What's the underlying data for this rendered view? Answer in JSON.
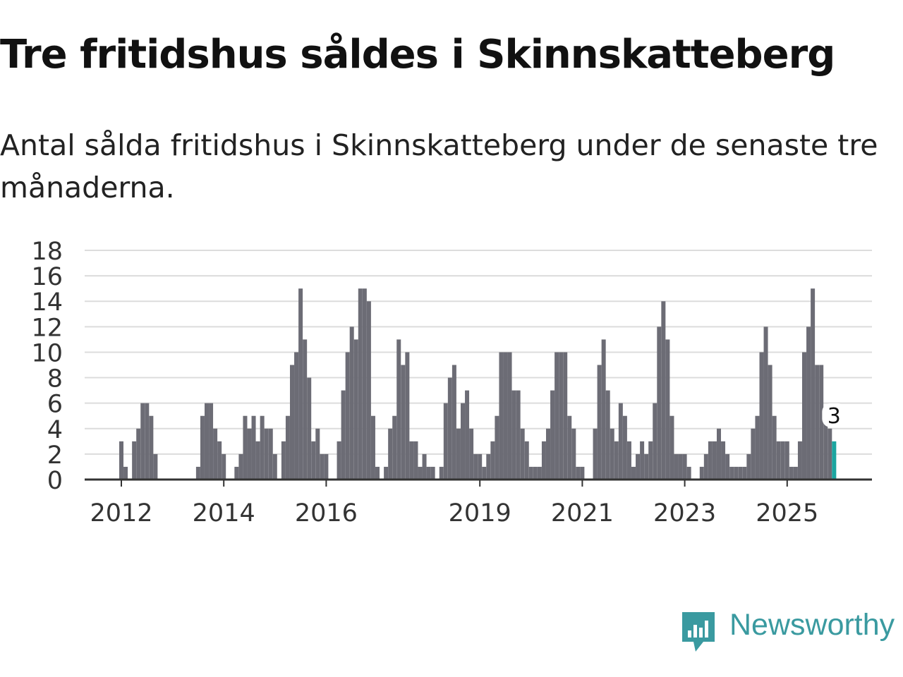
{
  "title": "Tre fritidshus såldes i Skinnskatteberg",
  "subtitle": "Antal sålda fritidshus i Skinnskatteberg under de senaste tre månaderna.",
  "brand": {
    "name": "Newsworthy",
    "color": "#3a9aa0",
    "icon": "newsworthy-logo-icon"
  },
  "colors": {
    "bar": "#6c6c75",
    "highlight": "#1ba5a0",
    "grid": "#dcdcdc",
    "axis": "#333333"
  },
  "chart_data": {
    "type": "bar",
    "title": "Tre fritidshus såldes i Skinnskatteberg",
    "ylabel": "",
    "xlabel": "",
    "ylim": [
      0,
      18
    ],
    "yticks": [
      0,
      2,
      4,
      6,
      8,
      10,
      12,
      14,
      16,
      18
    ],
    "grid": true,
    "start": "2011-01",
    "xticks": [
      {
        "label": "2012",
        "index": 12
      },
      {
        "label": "2014",
        "index": 36
      },
      {
        "label": "2016",
        "index": 60
      },
      {
        "label": "2019",
        "index": 96
      },
      {
        "label": "2021",
        "index": 120
      },
      {
        "label": "2023",
        "index": 144
      },
      {
        "label": "2025",
        "index": 168
      }
    ],
    "values": [
      0,
      0,
      0,
      0,
      0,
      0,
      0,
      0,
      0,
      0,
      0,
      0,
      3,
      1,
      0,
      3,
      4,
      6,
      6,
      5,
      2,
      0,
      0,
      0,
      0,
      0,
      0,
      0,
      0,
      0,
      1,
      5,
      6,
      6,
      4,
      3,
      2,
      0,
      0,
      1,
      2,
      5,
      4,
      5,
      3,
      5,
      4,
      4,
      2,
      0,
      3,
      5,
      9,
      10,
      15,
      11,
      8,
      3,
      4,
      2,
      2,
      0,
      0,
      3,
      7,
      10,
      12,
      11,
      15,
      15,
      14,
      5,
      1,
      0,
      1,
      4,
      5,
      11,
      9,
      10,
      3,
      3,
      1,
      2,
      1,
      1,
      0,
      1,
      6,
      8,
      9,
      4,
      6,
      7,
      4,
      2,
      2,
      1,
      2,
      3,
      5,
      10,
      10,
      10,
      7,
      7,
      4,
      3,
      1,
      1,
      1,
      3,
      4,
      7,
      10,
      10,
      10,
      5,
      4,
      1,
      1,
      0,
      0,
      4,
      9,
      11,
      7,
      4,
      3,
      6,
      5,
      3,
      1,
      2,
      3,
      2,
      3,
      6,
      12,
      14,
      11,
      5,
      2,
      2,
      2,
      1,
      0,
      0,
      1,
      2,
      3,
      3,
      4,
      3,
      2,
      1,
      1,
      1,
      1,
      2,
      4,
      5,
      10,
      12,
      9,
      5,
      3,
      3,
      3,
      1,
      1,
      3,
      10,
      12,
      15,
      9,
      9,
      5,
      4,
      3
    ],
    "highlight_last": 1,
    "last_value_label": "3"
  }
}
